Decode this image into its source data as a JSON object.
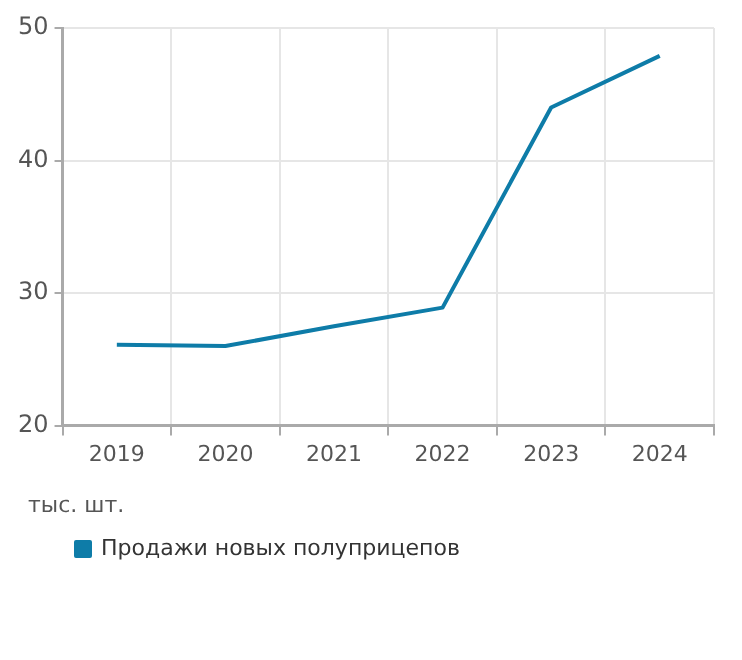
{
  "chart_data": {
    "type": "line",
    "categories": [
      "2019",
      "2020",
      "2021",
      "2022",
      "2023",
      "2024"
    ],
    "series": [
      {
        "name": "Продажи новых полуприцепов",
        "color": "#0e7ca8",
        "values": [
          26.1,
          26.0,
          27.5,
          28.9,
          44.0,
          47.9
        ]
      }
    ],
    "ylim": [
      20,
      50
    ],
    "yticks": [
      20,
      30,
      40,
      50
    ],
    "grid": true,
    "legend": "bottom",
    "marker": "none",
    "annotations": [
      "тыс. шт."
    ]
  }
}
